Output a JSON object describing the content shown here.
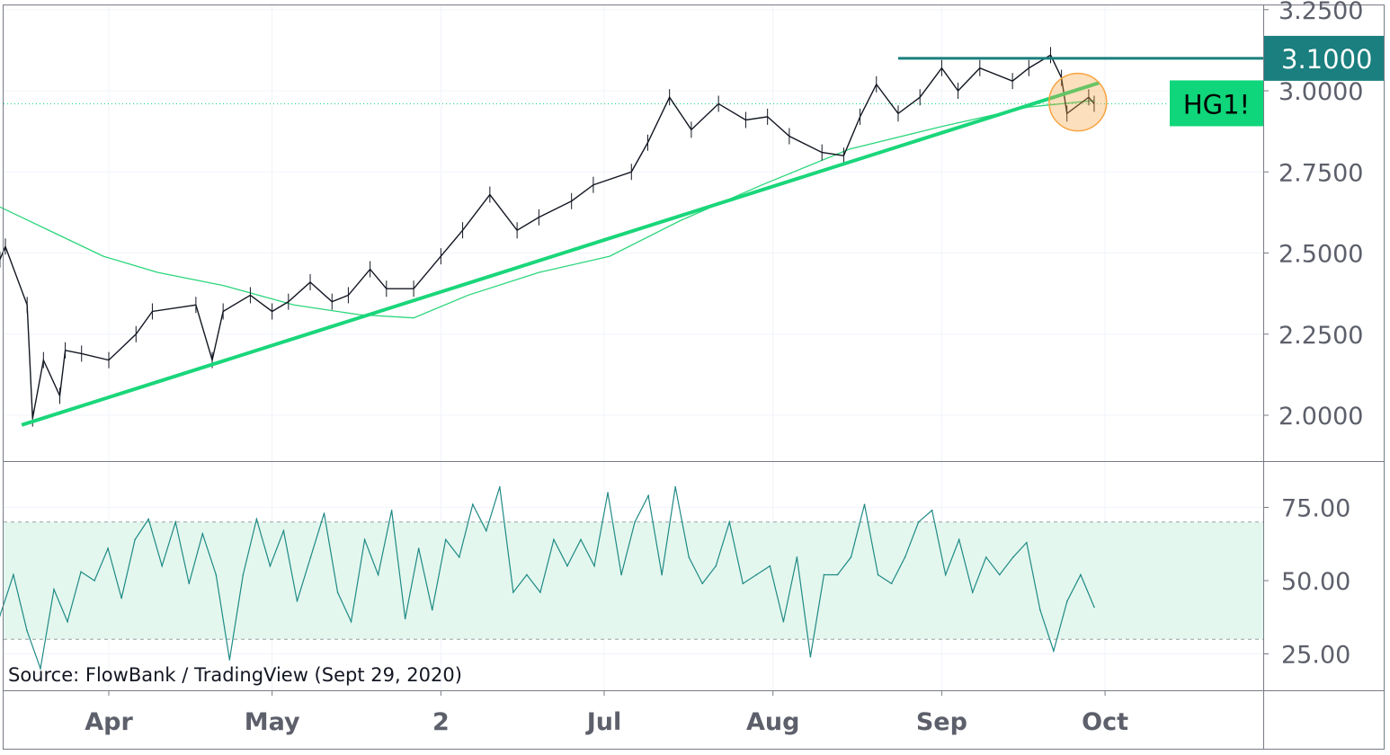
{
  "chart_data": [
    {
      "type": "line",
      "pane": "price",
      "symbol": "HG1!",
      "last_price": 2.96,
      "yticks": [
        "3.2500",
        "3.0000",
        "2.7500",
        "2.5000",
        "2.2500",
        "2.0000"
      ],
      "ylim": [
        1.87,
        3.27
      ],
      "xticks": [
        "Apr",
        "May",
        "2",
        "Jul",
        "Aug",
        "Sep",
        "Oct"
      ],
      "xlim": [
        "2020-03-11",
        "2020-10-29"
      ],
      "grid": true,
      "series": [
        {
          "points": [
            [
              "2020-03-12",
              2.48
            ],
            [
              "2020-03-13",
              2.52
            ],
            [
              "2020-03-17",
              2.34
            ],
            [
              "2020-03-18",
              1.99
            ],
            [
              "2020-03-20",
              2.17
            ],
            [
              "2020-03-23",
              2.06
            ],
            [
              "2020-03-24",
              2.2
            ],
            [
              "2020-03-27",
              2.19
            ],
            [
              "2020-04-01",
              2.17
            ],
            [
              "2020-04-06",
              2.25
            ],
            [
              "2020-04-09",
              2.32
            ],
            [
              "2020-04-17",
              2.34
            ],
            [
              "2020-04-20",
              2.17
            ],
            [
              "2020-04-22",
              2.32
            ],
            [
              "2020-04-27",
              2.37
            ],
            [
              "2020-05-01",
              2.32
            ],
            [
              "2020-05-04",
              2.35
            ],
            [
              "2020-05-08",
              2.41
            ],
            [
              "2020-05-12",
              2.35
            ],
            [
              "2020-05-15",
              2.37
            ],
            [
              "2020-05-19",
              2.45
            ],
            [
              "2020-05-22",
              2.39
            ],
            [
              "2020-05-27",
              2.39
            ],
            [
              "2020-06-01",
              2.49
            ],
            [
              "2020-06-05",
              2.57
            ],
            [
              "2020-06-10",
              2.68
            ],
            [
              "2020-06-15",
              2.57
            ],
            [
              "2020-06-19",
              2.61
            ],
            [
              "2020-06-25",
              2.66
            ],
            [
              "2020-06-29",
              2.71
            ],
            [
              "2020-07-06",
              2.75
            ],
            [
              "2020-07-09",
              2.84
            ],
            [
              "2020-07-13",
              2.98
            ],
            [
              "2020-07-17",
              2.88
            ],
            [
              "2020-07-22",
              2.96
            ],
            [
              "2020-07-27",
              2.91
            ],
            [
              "2020-07-31",
              2.92
            ],
            [
              "2020-08-04",
              2.86
            ],
            [
              "2020-08-10",
              2.81
            ],
            [
              "2020-08-14",
              2.8
            ],
            [
              "2020-08-17",
              2.92
            ],
            [
              "2020-08-20",
              3.02
            ],
            [
              "2020-08-24",
              2.93
            ],
            [
              "2020-08-28",
              2.98
            ],
            [
              "2020-09-01",
              3.07
            ],
            [
              "2020-09-04",
              3.0
            ],
            [
              "2020-09-08",
              3.07
            ],
            [
              "2020-09-14",
              3.03
            ],
            [
              "2020-09-17",
              3.07
            ],
            [
              "2020-09-21",
              3.11
            ],
            [
              "2020-09-23",
              3.04
            ],
            [
              "2020-09-24",
              2.93
            ],
            [
              "2020-09-28",
              2.98
            ],
            [
              "2020-09-29",
              2.96
            ]
          ],
          "color": "#131722"
        },
        {
          "points": [
            [
              "2020-03-11",
              2.65
            ],
            [
              "2020-03-21",
              2.57
            ],
            [
              "2020-03-31",
              2.49
            ],
            [
              "2020-04-10",
              2.44
            ],
            [
              "2020-04-22",
              2.4
            ],
            [
              "2020-05-05",
              2.34
            ],
            [
              "2020-05-17",
              2.31
            ],
            [
              "2020-05-27",
              2.3
            ],
            [
              "2020-06-06",
              2.37
            ],
            [
              "2020-06-19",
              2.44
            ],
            [
              "2020-07-02",
              2.49
            ],
            [
              "2020-07-15",
              2.6
            ],
            [
              "2020-07-30",
              2.71
            ],
            [
              "2020-08-15",
              2.82
            ],
            [
              "2020-09-01",
              2.89
            ],
            [
              "2020-09-17",
              2.95
            ],
            [
              "2020-09-29",
              2.97
            ]
          ],
          "color": "#2bd67b"
        }
      ],
      "annotations": {
        "trendline": {
          "from": [
            "2020-03-16",
            1.97
          ],
          "to": [
            "2020-09-30",
            3.025
          ],
          "color": "#1ad67a"
        },
        "resistance": {
          "value": 3.1,
          "label": "3.1000",
          "from": "2020-08-24",
          "color": "#1a7f7e"
        },
        "highlight_circle": {
          "center": [
            "2020-09-26",
            2.965
          ],
          "color": "#f7a440"
        },
        "symbol_label_color": "#0fd67a"
      }
    },
    {
      "type": "line",
      "pane": "rsi",
      "yticks": [
        "75.00",
        "50.00",
        "25.00"
      ],
      "ylim": [
        13,
        84
      ],
      "bands": [
        30,
        70
      ],
      "x_range": [
        "2020-03-12",
        "2020-09-29"
      ],
      "color": "#1f8a85",
      "band_color": "#e3f7ee",
      "values": [
        38,
        52,
        33,
        20,
        47,
        36,
        53,
        50,
        61,
        44,
        64,
        71,
        55,
        70,
        49,
        66,
        52,
        23,
        52,
        71,
        55,
        67,
        43,
        58,
        73,
        46,
        36,
        64,
        52,
        74,
        37,
        61,
        40,
        64,
        58,
        76,
        67,
        82,
        46,
        52,
        46,
        64,
        55,
        64,
        55,
        80,
        52,
        70,
        79,
        52,
        82,
        58,
        49,
        55,
        70,
        49,
        52,
        55,
        36,
        58,
        24,
        52,
        52,
        58,
        76,
        52,
        49,
        58,
        70,
        74,
        52,
        64,
        46,
        58,
        52,
        58,
        63,
        40,
        26,
        43,
        52,
        41
      ]
    }
  ],
  "source": "Source: FlowBank / TradingView (Sept 29, 2020)"
}
